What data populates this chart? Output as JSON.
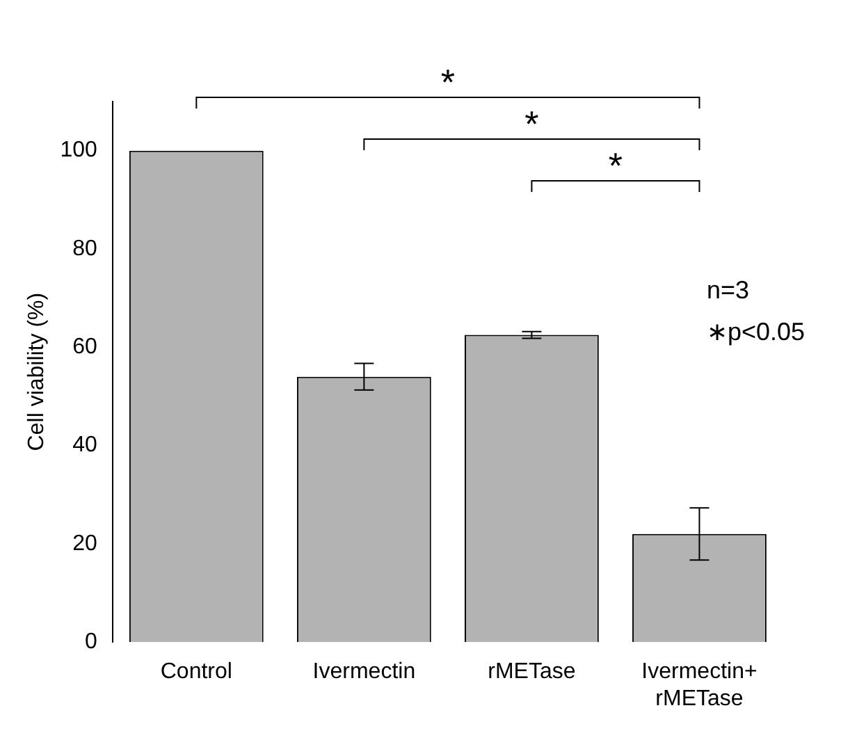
{
  "chart_data": {
    "type": "bar",
    "ylabel": "Cell viability (%)",
    "categories": [
      "Control",
      "Ivermectin",
      "rMETase",
      "Ivermectin+ rMETase"
    ],
    "values": [
      100,
      54,
      62.5,
      22
    ],
    "errors": [
      null,
      2.7,
      0.7,
      5.3
    ],
    "color": "#b3b3b3",
    "ylim": [
      0,
      110
    ],
    "yticks": [
      0,
      20,
      40,
      60,
      80,
      100
    ],
    "grid": false,
    "legend": false,
    "annotations": [
      "*",
      "*",
      "*",
      "n=3",
      "∗p<0.05"
    ]
  }
}
